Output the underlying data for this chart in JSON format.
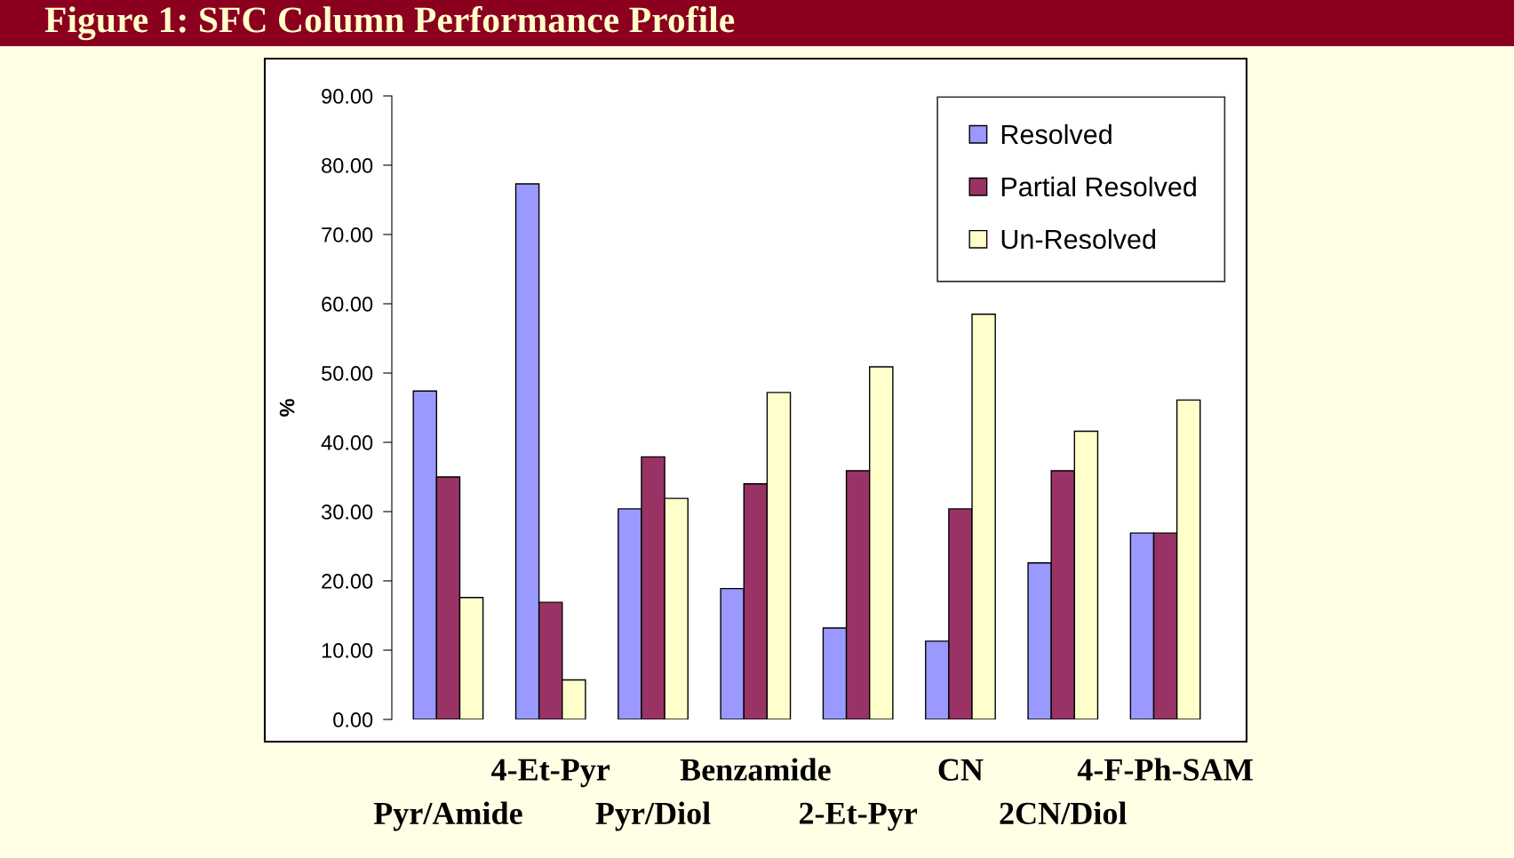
{
  "chart_data": {
    "type": "bar",
    "title": "Figure 1: SFC Column Performance Profile",
    "ylabel": "%",
    "categories": [
      "Pyr/Amide",
      "4-Et-Pyr",
      "Pyr/Diol",
      "Benzamide",
      "2-Et-Pyr",
      "CN",
      "2CN/Diol",
      "4-F-Ph-SAM"
    ],
    "series": [
      {
        "name": "Resolved",
        "color": "#9999ff",
        "values": [
          47.4,
          77.3,
          30.4,
          18.9,
          13.2,
          11.3,
          22.6,
          26.9
        ]
      },
      {
        "name": "Partial Resolved",
        "color": "#993366",
        "values": [
          35.0,
          16.9,
          37.9,
          34.0,
          35.9,
          30.4,
          35.9,
          26.9
        ]
      },
      {
        "name": "Un-Resolved",
        "color": "#ffffcc",
        "values": [
          17.6,
          5.7,
          31.9,
          47.2,
          50.9,
          58.5,
          41.6,
          46.1
        ]
      }
    ],
    "ylim": [
      0,
      90
    ],
    "yticks": [
      {
        "value": 0,
        "label": "0.00"
      },
      {
        "value": 10,
        "label": "10.00"
      },
      {
        "value": 20,
        "label": "20.00"
      },
      {
        "value": 30,
        "label": "30.00"
      },
      {
        "value": 40,
        "label": "40.00"
      },
      {
        "value": 50,
        "label": "50.00"
      },
      {
        "value": 60,
        "label": "60.00"
      },
      {
        "value": 70,
        "label": "70.00"
      },
      {
        "value": 80,
        "label": "80.00"
      },
      {
        "value": 90,
        "label": "90.00"
      }
    ],
    "grid": false,
    "legend": "top right"
  }
}
